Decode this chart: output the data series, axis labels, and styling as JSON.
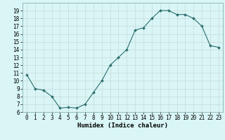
{
  "x": [
    0,
    1,
    2,
    3,
    4,
    5,
    6,
    7,
    8,
    9,
    10,
    11,
    12,
    13,
    14,
    15,
    16,
    17,
    18,
    19,
    20,
    21,
    22,
    23
  ],
  "y": [
    10.8,
    9.0,
    8.8,
    8.0,
    6.5,
    6.6,
    6.5,
    7.0,
    8.5,
    10.0,
    12.0,
    13.0,
    14.0,
    16.5,
    16.8,
    18.0,
    19.0,
    19.0,
    18.5,
    18.5,
    18.0,
    17.0,
    14.5,
    14.3
  ],
  "line_color": "#2d6e6e",
  "marker": "D",
  "marker_size": 2.0,
  "bg_color": "#d9f5f5",
  "grid_color": "#c8dada",
  "xlabel": "Humidex (Indice chaleur)",
  "ylim": [
    6,
    20
  ],
  "xlim": [
    -0.5,
    23.5
  ],
  "yticks": [
    6,
    7,
    8,
    9,
    10,
    11,
    12,
    13,
    14,
    15,
    16,
    17,
    18,
    19
  ],
  "xticks": [
    0,
    1,
    2,
    3,
    4,
    5,
    6,
    7,
    8,
    9,
    10,
    11,
    12,
    13,
    14,
    15,
    16,
    17,
    18,
    19,
    20,
    21,
    22,
    23
  ],
  "axis_fontsize": 6.5,
  "tick_fontsize": 5.5,
  "border_color": "#8ab0b0",
  "linewidth": 0.8
}
